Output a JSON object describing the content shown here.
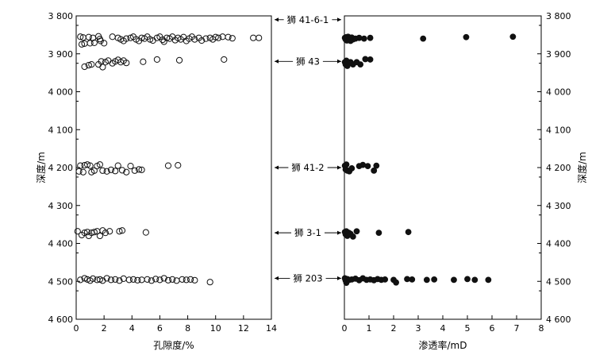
{
  "chart_data": [
    {
      "type": "scatter",
      "panel": "left",
      "xlabel": "孔隙度/%",
      "ylabel": "深度/m",
      "xlim": [
        0,
        14
      ],
      "ylim": [
        4600,
        3800
      ],
      "x_ticks": [
        0,
        2,
        4,
        6,
        8,
        10,
        12,
        14
      ],
      "y_ticks": [
        3800,
        3900,
        4000,
        4100,
        4200,
        4300,
        4400,
        4500,
        4600
      ],
      "y_tick_labels": [
        "3 800",
        "3 900",
        "4 000",
        "4 100",
        "4 200",
        "4 300",
        "4 400",
        "4 500",
        "4 600"
      ],
      "marker": "open-circle",
      "grid": false,
      "points": [
        [
          0.3,
          3855
        ],
        [
          0.5,
          3857
        ],
        [
          0.9,
          3856
        ],
        [
          1.2,
          3858
        ],
        [
          1.6,
          3854
        ],
        [
          1.7,
          3861
        ],
        [
          1.75,
          3866
        ],
        [
          2.6,
          3855
        ],
        [
          3.0,
          3858
        ],
        [
          3.2,
          3862
        ],
        [
          3.4,
          3866
        ],
        [
          3.6,
          3860
        ],
        [
          3.9,
          3858
        ],
        [
          4.1,
          3855
        ],
        [
          4.3,
          3862
        ],
        [
          4.5,
          3866
        ],
        [
          4.7,
          3858
        ],
        [
          4.9,
          3860
        ],
        [
          5.1,
          3855
        ],
        [
          5.3,
          3862
        ],
        [
          5.5,
          3865
        ],
        [
          5.8,
          3858
        ],
        [
          6.0,
          3855
        ],
        [
          6.2,
          3863
        ],
        [
          6.3,
          3868
        ],
        [
          6.5,
          3858
        ],
        [
          6.7,
          3860
        ],
        [
          6.9,
          3855
        ],
        [
          7.1,
          3864
        ],
        [
          7.3,
          3858
        ],
        [
          7.5,
          3862
        ],
        [
          7.7,
          3856
        ],
        [
          7.9,
          3866
        ],
        [
          8.1,
          3860
        ],
        [
          8.3,
          3855
        ],
        [
          8.5,
          3862
        ],
        [
          8.8,
          3858
        ],
        [
          9.0,
          3865
        ],
        [
          9.3,
          3860
        ],
        [
          9.6,
          3858
        ],
        [
          9.8,
          3862
        ],
        [
          10.0,
          3856
        ],
        [
          10.2,
          3858
        ],
        [
          10.5,
          3855
        ],
        [
          10.9,
          3856
        ],
        [
          11.2,
          3859
        ],
        [
          12.7,
          3858
        ],
        [
          13.1,
          3858
        ],
        [
          0.6,
          3934
        ],
        [
          0.9,
          3930
        ],
        [
          1.1,
          3928
        ],
        [
          1.6,
          3928
        ],
        [
          1.8,
          3920
        ],
        [
          1.9,
          3935
        ],
        [
          2.1,
          3922
        ],
        [
          2.3,
          3918
        ],
        [
          2.6,
          3925
        ],
        [
          2.8,
          3920
        ],
        [
          3.0,
          3916
        ],
        [
          3.2,
          3922
        ],
        [
          3.4,
          3918
        ],
        [
          3.6,
          3924
        ],
        [
          4.8,
          3921
        ],
        [
          5.8,
          3915
        ],
        [
          7.4,
          3917
        ],
        [
          10.6,
          3915
        ],
        [
          0.4,
          3875
        ],
        [
          0.6,
          3873
        ],
        [
          1.0,
          3872
        ],
        [
          1.3,
          3871
        ],
        [
          2.0,
          3872
        ],
        [
          0.3,
          4195
        ],
        [
          0.6,
          4194
        ],
        [
          0.8,
          4192
        ],
        [
          1.0,
          4195
        ],
        [
          1.1,
          4212
        ],
        [
          1.3,
          4208
        ],
        [
          1.5,
          4196
        ],
        [
          1.7,
          4192
        ],
        [
          1.9,
          4208
        ],
        [
          2.2,
          4210
        ],
        [
          2.5,
          4206
        ],
        [
          2.8,
          4209
        ],
        [
          3.0,
          4195
        ],
        [
          3.3,
          4207
        ],
        [
          3.6,
          4212
        ],
        [
          3.9,
          4196
        ],
        [
          4.2,
          4208
        ],
        [
          4.5,
          4205
        ],
        [
          4.7,
          4206
        ],
        [
          0.2,
          4210
        ],
        [
          0.5,
          4212
        ],
        [
          6.6,
          4195
        ],
        [
          7.3,
          4194
        ],
        [
          0.1,
          4368
        ],
        [
          0.4,
          4378
        ],
        [
          0.6,
          4372
        ],
        [
          0.8,
          4370
        ],
        [
          0.9,
          4380
        ],
        [
          1.1,
          4372
        ],
        [
          1.3,
          4370
        ],
        [
          1.5,
          4368
        ],
        [
          1.7,
          4380
        ],
        [
          1.9,
          4366
        ],
        [
          2.1,
          4372
        ],
        [
          2.4,
          4368
        ],
        [
          3.1,
          4368
        ],
        [
          3.3,
          4366
        ],
        [
          5.0,
          4371
        ],
        [
          0.3,
          4496
        ],
        [
          0.6,
          4492
        ],
        [
          0.8,
          4495
        ],
        [
          1.0,
          4498
        ],
        [
          1.2,
          4493
        ],
        [
          1.5,
          4496
        ],
        [
          1.7,
          4495
        ],
        [
          1.9,
          4498
        ],
        [
          2.2,
          4492
        ],
        [
          2.5,
          4496
        ],
        [
          2.8,
          4495
        ],
        [
          3.1,
          4498
        ],
        [
          3.4,
          4493
        ],
        [
          3.8,
          4496
        ],
        [
          4.1,
          4495
        ],
        [
          4.4,
          4497
        ],
        [
          4.7,
          4496
        ],
        [
          5.1,
          4495
        ],
        [
          5.4,
          4498
        ],
        [
          5.7,
          4494
        ],
        [
          6.0,
          4496
        ],
        [
          6.3,
          4492
        ],
        [
          6.6,
          4497
        ],
        [
          6.9,
          4495
        ],
        [
          7.2,
          4498
        ],
        [
          7.6,
          4495
        ],
        [
          7.9,
          4496
        ],
        [
          8.2,
          4495
        ],
        [
          8.5,
          4497
        ],
        [
          9.6,
          4502
        ]
      ]
    },
    {
      "type": "scatter",
      "panel": "right",
      "xlabel": "渗透率/mD",
      "ylabel": "深度/m",
      "xlim": [
        0,
        8
      ],
      "ylim": [
        4600,
        3800
      ],
      "x_ticks": [
        0,
        1,
        2,
        3,
        4,
        5,
        6,
        7,
        8
      ],
      "y_ticks": [
        3800,
        3900,
        4000,
        4100,
        4200,
        4300,
        4400,
        4500,
        4600
      ],
      "y_tick_labels": [
        "3 800",
        "3 900",
        "4 000",
        "4 100",
        "4 200",
        "4 300",
        "4 400",
        "4 500",
        "4 600"
      ],
      "marker": "filled-circle",
      "grid": false,
      "points": [
        [
          0.02,
          3858
        ],
        [
          0.05,
          3862
        ],
        [
          0.08,
          3856
        ],
        [
          0.1,
          3865
        ],
        [
          0.12,
          3860
        ],
        [
          0.15,
          3855
        ],
        [
          0.18,
          3862
        ],
        [
          0.2,
          3858
        ],
        [
          0.25,
          3866
        ],
        [
          0.3,
          3857
        ],
        [
          0.35,
          3862
        ],
        [
          0.45,
          3860
        ],
        [
          0.6,
          3858
        ],
        [
          0.8,
          3860
        ],
        [
          1.05,
          3858
        ],
        [
          3.2,
          3860
        ],
        [
          4.95,
          3856
        ],
        [
          6.85,
          3855
        ],
        [
          0.02,
          3922
        ],
        [
          0.05,
          3928
        ],
        [
          0.08,
          3918
        ],
        [
          0.12,
          3932
        ],
        [
          0.18,
          3925
        ],
        [
          0.25,
          3922
        ],
        [
          0.35,
          3928
        ],
        [
          0.5,
          3922
        ],
        [
          0.65,
          3928
        ],
        [
          0.85,
          3914
        ],
        [
          1.05,
          3915
        ],
        [
          0.02,
          4195
        ],
        [
          0.05,
          4205
        ],
        [
          0.08,
          4192
        ],
        [
          0.12,
          4208
        ],
        [
          0.2,
          4210
        ],
        [
          0.3,
          4202
        ],
        [
          0.6,
          4196
        ],
        [
          0.75,
          4193
        ],
        [
          0.95,
          4196
        ],
        [
          1.2,
          4208
        ],
        [
          1.3,
          4195
        ],
        [
          0.02,
          4370
        ],
        [
          0.05,
          4376
        ],
        [
          0.08,
          4368
        ],
        [
          0.12,
          4380
        ],
        [
          0.18,
          4372
        ],
        [
          0.25,
          4375
        ],
        [
          0.35,
          4382
        ],
        [
          0.5,
          4368
        ],
        [
          1.4,
          4372
        ],
        [
          2.6,
          4370
        ],
        [
          0.02,
          4492
        ],
        [
          0.05,
          4498
        ],
        [
          0.08,
          4504
        ],
        [
          0.12,
          4494
        ],
        [
          0.2,
          4496
        ],
        [
          0.3,
          4495
        ],
        [
          0.45,
          4493
        ],
        [
          0.6,
          4497
        ],
        [
          0.75,
          4492
        ],
        [
          0.9,
          4496
        ],
        [
          1.05,
          4495
        ],
        [
          1.2,
          4497
        ],
        [
          1.35,
          4494
        ],
        [
          1.5,
          4496
        ],
        [
          1.65,
          4495
        ],
        [
          2.0,
          4496
        ],
        [
          2.1,
          4503
        ],
        [
          2.55,
          4494
        ],
        [
          2.75,
          4495
        ],
        [
          3.35,
          4496
        ],
        [
          3.65,
          4495
        ],
        [
          4.45,
          4496
        ],
        [
          5.0,
          4494
        ],
        [
          5.3,
          4496
        ],
        [
          5.85,
          4496
        ]
      ]
    }
  ],
  "wells": [
    {
      "name": "狮 41-6-1",
      "depth": 3810
    },
    {
      "name": "狮 43",
      "depth": 3920
    },
    {
      "name": "狮 41-2",
      "depth": 4200
    },
    {
      "name": "狮 3-1",
      "depth": 4372
    },
    {
      "name": "狮 203",
      "depth": 4492
    }
  ],
  "colors": {
    "axis": "#000000",
    "marker": "#111111"
  }
}
